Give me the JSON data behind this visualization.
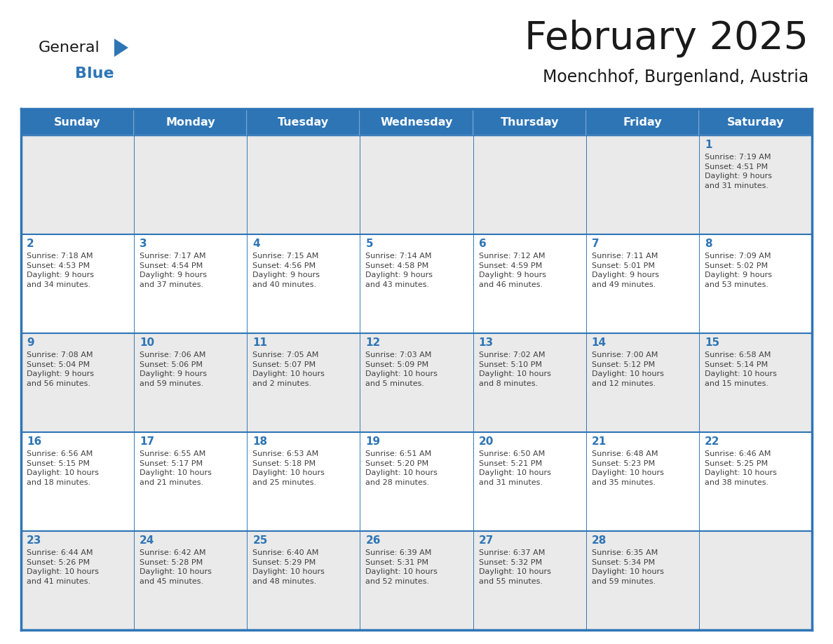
{
  "title": "February 2025",
  "subtitle": "Moenchhof, Burgenland, Austria",
  "days_of_week": [
    "Sunday",
    "Monday",
    "Tuesday",
    "Wednesday",
    "Thursday",
    "Friday",
    "Saturday"
  ],
  "header_bg": "#2E75B6",
  "header_text": "#FFFFFF",
  "row0_bg": "#EAEAEA",
  "row1_bg": "#FFFFFF",
  "row2_bg": "#EAEAEA",
  "row3_bg": "#FFFFFF",
  "row4_bg": "#EAEAEA",
  "border_color": "#2E75B6",
  "row_border_color": "#2E75B6",
  "day_number_color": "#2E75B6",
  "cell_text_color": "#404040",
  "title_color": "#1a1a1a",
  "logo_general_color": "#1a1a1a",
  "logo_blue_color": "#2E75B6",
  "logo_triangle_color": "#2E75B6",
  "fig_width": 11.88,
  "fig_height": 9.18,
  "weeks": [
    [
      {
        "day": null,
        "info": ""
      },
      {
        "day": null,
        "info": ""
      },
      {
        "day": null,
        "info": ""
      },
      {
        "day": null,
        "info": ""
      },
      {
        "day": null,
        "info": ""
      },
      {
        "day": null,
        "info": ""
      },
      {
        "day": 1,
        "info": "Sunrise: 7:19 AM\nSunset: 4:51 PM\nDaylight: 9 hours\nand 31 minutes."
      }
    ],
    [
      {
        "day": 2,
        "info": "Sunrise: 7:18 AM\nSunset: 4:53 PM\nDaylight: 9 hours\nand 34 minutes."
      },
      {
        "day": 3,
        "info": "Sunrise: 7:17 AM\nSunset: 4:54 PM\nDaylight: 9 hours\nand 37 minutes."
      },
      {
        "day": 4,
        "info": "Sunrise: 7:15 AM\nSunset: 4:56 PM\nDaylight: 9 hours\nand 40 minutes."
      },
      {
        "day": 5,
        "info": "Sunrise: 7:14 AM\nSunset: 4:58 PM\nDaylight: 9 hours\nand 43 minutes."
      },
      {
        "day": 6,
        "info": "Sunrise: 7:12 AM\nSunset: 4:59 PM\nDaylight: 9 hours\nand 46 minutes."
      },
      {
        "day": 7,
        "info": "Sunrise: 7:11 AM\nSunset: 5:01 PM\nDaylight: 9 hours\nand 49 minutes."
      },
      {
        "day": 8,
        "info": "Sunrise: 7:09 AM\nSunset: 5:02 PM\nDaylight: 9 hours\nand 53 minutes."
      }
    ],
    [
      {
        "day": 9,
        "info": "Sunrise: 7:08 AM\nSunset: 5:04 PM\nDaylight: 9 hours\nand 56 minutes."
      },
      {
        "day": 10,
        "info": "Sunrise: 7:06 AM\nSunset: 5:06 PM\nDaylight: 9 hours\nand 59 minutes."
      },
      {
        "day": 11,
        "info": "Sunrise: 7:05 AM\nSunset: 5:07 PM\nDaylight: 10 hours\nand 2 minutes."
      },
      {
        "day": 12,
        "info": "Sunrise: 7:03 AM\nSunset: 5:09 PM\nDaylight: 10 hours\nand 5 minutes."
      },
      {
        "day": 13,
        "info": "Sunrise: 7:02 AM\nSunset: 5:10 PM\nDaylight: 10 hours\nand 8 minutes."
      },
      {
        "day": 14,
        "info": "Sunrise: 7:00 AM\nSunset: 5:12 PM\nDaylight: 10 hours\nand 12 minutes."
      },
      {
        "day": 15,
        "info": "Sunrise: 6:58 AM\nSunset: 5:14 PM\nDaylight: 10 hours\nand 15 minutes."
      }
    ],
    [
      {
        "day": 16,
        "info": "Sunrise: 6:56 AM\nSunset: 5:15 PM\nDaylight: 10 hours\nand 18 minutes."
      },
      {
        "day": 17,
        "info": "Sunrise: 6:55 AM\nSunset: 5:17 PM\nDaylight: 10 hours\nand 21 minutes."
      },
      {
        "day": 18,
        "info": "Sunrise: 6:53 AM\nSunset: 5:18 PM\nDaylight: 10 hours\nand 25 minutes."
      },
      {
        "day": 19,
        "info": "Sunrise: 6:51 AM\nSunset: 5:20 PM\nDaylight: 10 hours\nand 28 minutes."
      },
      {
        "day": 20,
        "info": "Sunrise: 6:50 AM\nSunset: 5:21 PM\nDaylight: 10 hours\nand 31 minutes."
      },
      {
        "day": 21,
        "info": "Sunrise: 6:48 AM\nSunset: 5:23 PM\nDaylight: 10 hours\nand 35 minutes."
      },
      {
        "day": 22,
        "info": "Sunrise: 6:46 AM\nSunset: 5:25 PM\nDaylight: 10 hours\nand 38 minutes."
      }
    ],
    [
      {
        "day": 23,
        "info": "Sunrise: 6:44 AM\nSunset: 5:26 PM\nDaylight: 10 hours\nand 41 minutes."
      },
      {
        "day": 24,
        "info": "Sunrise: 6:42 AM\nSunset: 5:28 PM\nDaylight: 10 hours\nand 45 minutes."
      },
      {
        "day": 25,
        "info": "Sunrise: 6:40 AM\nSunset: 5:29 PM\nDaylight: 10 hours\nand 48 minutes."
      },
      {
        "day": 26,
        "info": "Sunrise: 6:39 AM\nSunset: 5:31 PM\nDaylight: 10 hours\nand 52 minutes."
      },
      {
        "day": 27,
        "info": "Sunrise: 6:37 AM\nSunset: 5:32 PM\nDaylight: 10 hours\nand 55 minutes."
      },
      {
        "day": 28,
        "info": "Sunrise: 6:35 AM\nSunset: 5:34 PM\nDaylight: 10 hours\nand 59 minutes."
      },
      {
        "day": null,
        "info": ""
      }
    ]
  ]
}
